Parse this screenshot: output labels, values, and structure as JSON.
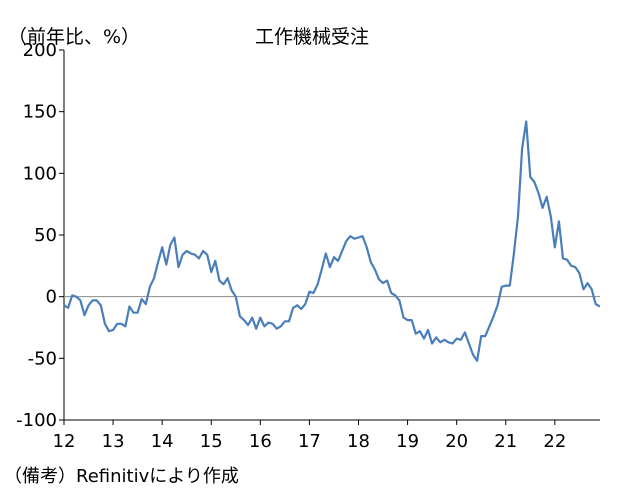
{
  "chart_data": {
    "type": "line",
    "title": "工作機械受注",
    "unit_label": "（前年比、%）",
    "note": "（備考）Refinitivにより作成",
    "ylim": [
      -100,
      200
    ],
    "yticks": [
      -100,
      -50,
      0,
      50,
      100,
      150,
      200
    ],
    "xlim": [
      2012,
      2022.92
    ],
    "xticks": [
      {
        "label": "12",
        "value": 2012
      },
      {
        "label": "13",
        "value": 2013
      },
      {
        "label": "14",
        "value": 2014
      },
      {
        "label": "15",
        "value": 2015
      },
      {
        "label": "16",
        "value": 2016
      },
      {
        "label": "17",
        "value": 2017
      },
      {
        "label": "18",
        "value": 2018
      },
      {
        "label": "19",
        "value": 2019
      },
      {
        "label": "20",
        "value": 2020
      },
      {
        "label": "21",
        "value": 2021
      },
      {
        "label": "22",
        "value": 2022
      }
    ],
    "line_color": "#4a7ebb",
    "zero_line_color": "#8c8c8c",
    "series": [
      {
        "x_start": "2012-01",
        "frequency": "monthly",
        "values": [
          -7,
          -9,
          1,
          0,
          -3,
          -15,
          -7,
          -3,
          -3,
          -7,
          -22,
          -28,
          -27,
          -22,
          -22,
          -24,
          -8,
          -13,
          -13,
          -2,
          -6,
          8,
          15,
          28,
          40,
          26,
          42,
          48,
          24,
          34,
          37,
          35,
          34,
          31,
          37,
          34,
          20,
          29,
          13,
          10,
          15,
          5,
          0,
          -16,
          -19,
          -23,
          -17,
          -26,
          -17,
          -24,
          -21,
          -22,
          -26,
          -24,
          -20,
          -20,
          -9,
          -7,
          -10,
          -6,
          4,
          3,
          10,
          22,
          35,
          24,
          32,
          29,
          37,
          45,
          49,
          47,
          48,
          49,
          40,
          28,
          22,
          14,
          11,
          13,
          3,
          1,
          -3,
          -17,
          -19,
          -19,
          -30,
          -28,
          -34,
          -27,
          -38,
          -33,
          -37,
          -35,
          -37,
          -38,
          -34,
          -35,
          -29,
          -38,
          -47,
          -52,
          -32,
          -32,
          -24,
          -16,
          -7,
          8,
          9,
          9,
          35,
          65,
          120,
          142,
          97,
          93,
          84,
          72,
          81,
          65,
          40,
          61,
          31,
          30,
          25,
          24,
          19,
          6,
          11,
          6,
          -6,
          -8
        ]
      }
    ]
  }
}
